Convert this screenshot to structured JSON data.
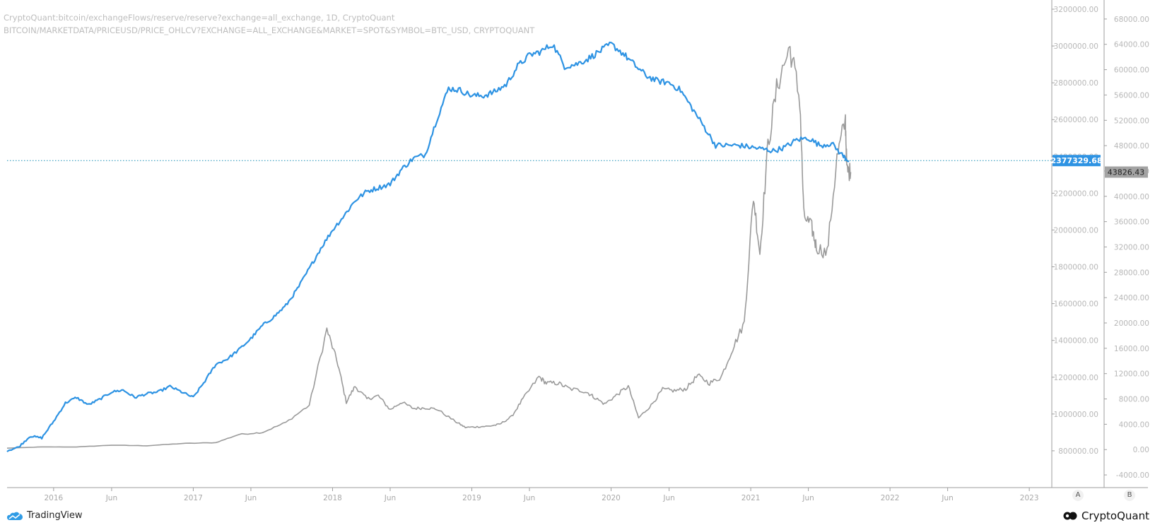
{
  "legend": {
    "line1": "CryptoQuant:bitcoin/exchangeFlows/reserve/reserve?exchange=all_exchange, 1D, CryptoQuant",
    "line2": "BITCOIN/MARKETDATA/PRICEUSD/PRICE_OHLCV?EXCHANGE=ALL_EXCHANGE&MARKET=SPOT&SYMBOL=BTC_USD, CRYPTOQUANT"
  },
  "branding": {
    "tradingview": "TradingView",
    "cryptoquant": "CryptoQuant"
  },
  "scale_buttons": {
    "a": "A",
    "b": "B"
  },
  "colors": {
    "reserve": "#2e93e3",
    "price": "#9a9a9a",
    "crosshair": "#1a8fb5",
    "axis": "#9e9e9e"
  },
  "chart_data": {
    "type": "line",
    "x_axis": {
      "range": [
        "2015-09",
        "2023-03"
      ],
      "tick_labels": [
        "2016",
        "Jun",
        "2017",
        "Jun",
        "2018",
        "Jun",
        "2019",
        "Jun",
        "2020",
        "Jun",
        "2021",
        "Jun",
        "2022",
        "Jun",
        "2023"
      ]
    },
    "y_axis_left": {
      "title": "",
      "range": [
        600000,
        3250000
      ],
      "tick_labels": [
        "3200000.00",
        "3000000.00",
        "2800000.00",
        "2600000.00",
        "2400000.00",
        "2200000.00",
        "2000000.00",
        "1800000.00",
        "1600000.00",
        "1400000.00",
        "1200000.00",
        "1000000.00",
        "800000.00"
      ]
    },
    "y_axis_right": {
      "title": "",
      "range": [
        -6000,
        71000
      ],
      "tick_labels": [
        "68000.00",
        "64000.00",
        "60000.00",
        "56000.00",
        "52000.00",
        "48000.00",
        "44000.00",
        "40000.00",
        "36000.00",
        "32000.00",
        "28000.00",
        "24000.00",
        "20000.00",
        "16000.00",
        "12000.00",
        "8000.00",
        "4000.00",
        "0.00",
        "-4000.00"
      ]
    },
    "last_values": {
      "reserve": "2377329.68",
      "price": "43826.43"
    },
    "series": [
      {
        "axis": "left",
        "x": [
          "2015-09-01",
          "2015-10-01",
          "2015-11-01",
          "2015-12-01",
          "2016-01-01",
          "2016-02-01",
          "2016-03-01",
          "2016-04-01",
          "2016-05-01",
          "2016-06-01",
          "2016-07-01",
          "2016-08-01",
          "2016-09-01",
          "2016-10-01",
          "2016-11-01",
          "2016-12-01",
          "2017-01-01",
          "2017-02-01",
          "2017-03-01",
          "2017-04-01",
          "2017-05-01",
          "2017-06-01",
          "2017-07-01",
          "2017-08-01",
          "2017-09-01",
          "2017-10-01",
          "2017-11-01",
          "2017-12-01",
          "2018-01-01",
          "2018-02-01",
          "2018-03-01",
          "2018-04-01",
          "2018-05-01",
          "2018-06-01",
          "2018-07-01",
          "2018-08-01",
          "2018-09-01",
          "2018-10-01",
          "2018-11-01",
          "2018-12-01",
          "2019-01-01",
          "2019-02-01",
          "2019-03-01",
          "2019-04-01",
          "2019-05-01",
          "2019-06-01",
          "2019-07-01",
          "2019-08-01",
          "2019-09-01",
          "2019-10-01",
          "2019-11-01",
          "2019-12-01",
          "2020-01-01",
          "2020-02-01",
          "2020-03-01",
          "2020-04-01",
          "2020-05-01",
          "2020-06-01",
          "2020-07-01",
          "2020-08-01",
          "2020-09-01",
          "2020-10-01",
          "2020-11-01",
          "2020-12-01",
          "2021-01-01",
          "2021-02-01",
          "2021-03-01",
          "2021-04-01",
          "2021-05-01",
          "2021-06-01",
          "2021-07-01",
          "2021-08-01",
          "2021-09-01",
          "2021-09-15"
        ],
        "values": [
          800000,
          820000,
          880000,
          870000,
          960000,
          1060000,
          1090000,
          1050000,
          1080000,
          1120000,
          1130000,
          1090000,
          1110000,
          1120000,
          1150000,
          1120000,
          1090000,
          1180000,
          1270000,
          1300000,
          1350000,
          1410000,
          1480000,
          1530000,
          1590000,
          1680000,
          1790000,
          1900000,
          2000000,
          2080000,
          2160000,
          2210000,
          2230000,
          2250000,
          2330000,
          2390000,
          2410000,
          2600000,
          2770000,
          2760000,
          2730000,
          2730000,
          2750000,
          2790000,
          2890000,
          2950000,
          2970000,
          3010000,
          2890000,
          2900000,
          2930000,
          2970000,
          3010000,
          2960000,
          2900000,
          2840000,
          2810000,
          2800000,
          2760000,
          2660000,
          2560000,
          2460000,
          2460000,
          2460000,
          2450000,
          2440000,
          2430000,
          2450000,
          2490000,
          2500000,
          2460000,
          2470000,
          2400000,
          2377330
        ]
      },
      {
        "axis": "right",
        "x": [
          "2015-09-01",
          "2015-12-01",
          "2016-03-01",
          "2016-06-01",
          "2016-09-01",
          "2016-12-01",
          "2017-03-01",
          "2017-05-01",
          "2017-07-01",
          "2017-09-01",
          "2017-11-01",
          "2017-12-17",
          "2018-01-15",
          "2018-02-06",
          "2018-03-01",
          "2018-04-01",
          "2018-05-01",
          "2018-06-01",
          "2018-07-01",
          "2018-08-01",
          "2018-09-01",
          "2018-10-01",
          "2018-11-20",
          "2018-12-15",
          "2019-01-15",
          "2019-02-15",
          "2019-03-15",
          "2019-04-15",
          "2019-05-15",
          "2019-06-26",
          "2019-07-15",
          "2019-08-15",
          "2019-09-15",
          "2019-10-26",
          "2019-11-15",
          "2019-12-15",
          "2020-01-15",
          "2020-02-15",
          "2020-03-13",
          "2020-04-15",
          "2020-05-15",
          "2020-06-15",
          "2020-07-15",
          "2020-08-15",
          "2020-09-15",
          "2020-10-15",
          "2020-11-15",
          "2020-12-15",
          "2021-01-08",
          "2021-01-25",
          "2021-02-15",
          "2021-03-13",
          "2021-04-14",
          "2021-05-10",
          "2021-05-20",
          "2021-06-10",
          "2021-06-22",
          "2021-07-20",
          "2021-08-15",
          "2021-09-06",
          "2021-09-10",
          "2021-09-20"
        ],
        "values": [
          230,
          420,
          415,
          700,
          610,
          960,
          1100,
          2400,
          2700,
          4300,
          7000,
          19000,
          13500,
          7500,
          10000,
          8000,
          8500,
          6300,
          7500,
          6500,
          6600,
          6400,
          4400,
          3500,
          3600,
          3700,
          4000,
          5200,
          8000,
          11500,
          10500,
          10500,
          9600,
          9200,
          8400,
          7200,
          8600,
          10000,
          5000,
          7000,
          9500,
          9300,
          9600,
          11700,
          10500,
          11400,
          16000,
          20000,
          40000,
          31000,
          48000,
          58000,
          63500,
          55000,
          37000,
          35000,
          32000,
          31000,
          46000,
          52000,
          44000,
          43826
        ]
      }
    ]
  }
}
